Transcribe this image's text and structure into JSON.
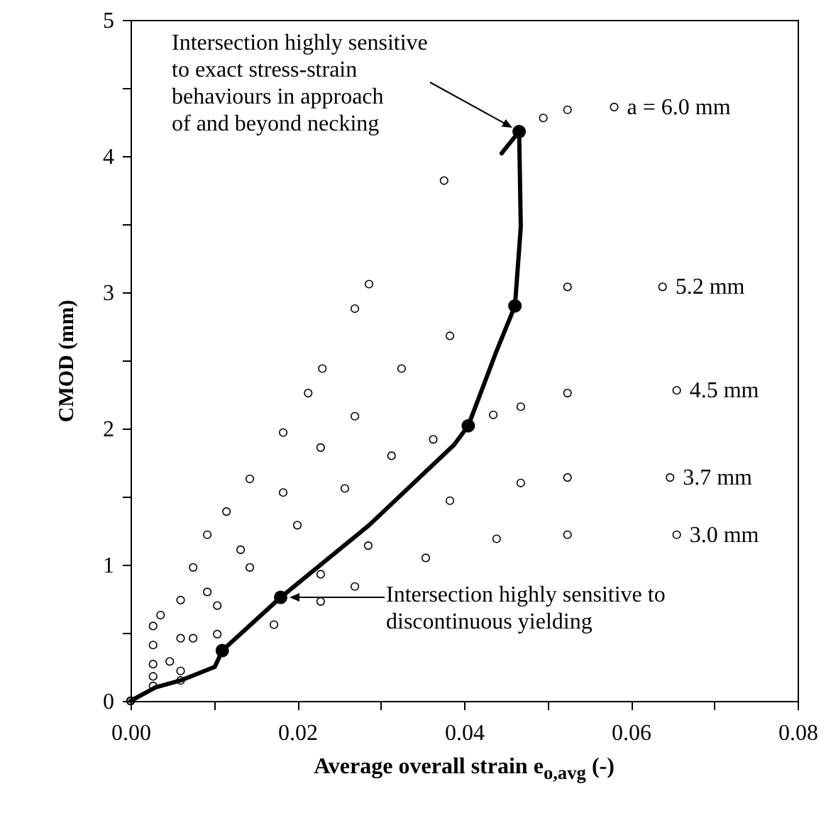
{
  "chart_data": {
    "type": "scatter",
    "xlabel": "Average overall strain e$_{o,avg}$ (-)",
    "ylabel": "CMOD (mm)",
    "xlim": [
      0,
      0.08
    ],
    "ylim": [
      0,
      5
    ],
    "xticks": [
      {
        "value": 0,
        "label": "0.00"
      },
      {
        "value": 0.01,
        "label": null
      },
      {
        "value": 0.02,
        "label": "0.02"
      },
      {
        "value": 0.03,
        "label": null
      },
      {
        "value": 0.04,
        "label": "0.04"
      },
      {
        "value": 0.05,
        "label": null
      },
      {
        "value": 0.06,
        "label": "0.06"
      },
      {
        "value": 0.07,
        "label": null
      },
      {
        "value": 0.08,
        "label": "0.08"
      }
    ],
    "yticks": [
      0,
      {
        "value": 0.5,
        "label": null
      },
      1,
      {
        "value": 1.5,
        "label": null
      },
      2,
      {
        "value": 2.5,
        "label": null
      },
      3,
      {
        "value": 3.5,
        "label": null
      },
      4,
      {
        "value": 4.5,
        "label": null
      },
      5
    ],
    "grid": false,
    "marker": "circle",
    "line_style": "solid",
    "series": [
      {
        "name": "a = 6.0 mm",
        "color": "#000000",
        "x": [
          0,
          0.0027,
          0.0036,
          0.006,
          0.0075,
          0.0092,
          0.0115,
          0.0143,
          0.0183,
          0.0213,
          0.023,
          0.0269,
          0.0286,
          0.0376,
          0.0495,
          0.0524,
          0.058
        ],
        "values": [
          0,
          0.55,
          0.63,
          0.74,
          0.98,
          1.22,
          1.39,
          1.63,
          1.97,
          2.26,
          2.44,
          2.88,
          3.06,
          3.82,
          4.28,
          4.34,
          4.36
        ]
      },
      {
        "name": "5.2 mm",
        "color": "#000000",
        "x": [
          0,
          0.0027,
          0.006,
          0.0092,
          0.0132,
          0.0183,
          0.0228,
          0.0269,
          0.0325,
          0.0383,
          0.0456,
          0.0524,
          0.0638
        ],
        "values": [
          0,
          0.41,
          0.46,
          0.8,
          1.11,
          1.53,
          1.86,
          2.09,
          2.44,
          2.68,
          null,
          3.04,
          3.04
        ]
      },
      {
        "name": "4.5 mm",
        "color": "#000000",
        "x": [
          0,
          0.0027,
          0.0047,
          0.0075,
          0.0104,
          0.0143,
          0.02,
          0.0257,
          0.0313,
          0.0363,
          0.0435,
          0.0468,
          0.0524,
          0.0655
        ],
        "values": [
          0,
          0.27,
          0.29,
          0.46,
          0.7,
          0.98,
          1.29,
          1.56,
          1.8,
          1.92,
          2.1,
          2.16,
          2.26,
          2.28
        ]
      },
      {
        "name": "3.7 mm",
        "color": "#000000",
        "x": [
          0,
          0.0027,
          0.006,
          0.0104,
          0.0172,
          0.0228,
          0.0285,
          0.0383,
          0.0468,
          0.0524,
          0.0647
        ],
        "values": [
          0,
          0.18,
          0.22,
          0.49,
          null,
          0.93,
          1.14,
          1.47,
          1.6,
          1.64,
          1.64
        ]
      },
      {
        "name": "3.0 mm",
        "color": "#000000",
        "x": [
          0,
          0.0027,
          0.006,
          0.0092,
          0.0115,
          0.0172,
          0.0228,
          0.0269,
          0.0354,
          0.0439,
          0.0524,
          0.0655
        ],
        "values": [
          0,
          0.11,
          0.15,
          null,
          null,
          0.56,
          0.73,
          0.84,
          1.05,
          1.19,
          1.22,
          1.22
        ]
      },
      {
        "type": "line",
        "marker": "none",
        "color": "#000000",
        "x": [
          0,
          0.003,
          0.006,
          0.0101,
          0.011,
          0.018,
          0.0286,
          0.0388,
          0.0405,
          0.0439,
          0.0461,
          0.0468,
          0.0466,
          0.0445
        ],
        "values": [
          0,
          0.1,
          0.15,
          0.25,
          0.37,
          0.76,
          1.29,
          1.88,
          2.02,
          2.57,
          2.9,
          3.48,
          4.18,
          4.02
        ]
      },
      {
        "color": "#000000",
        "x": [
          0.011,
          0.018,
          0.0405,
          0.0461,
          0.0466
        ],
        "values": [
          0.37,
          0.76,
          2.02,
          2.9,
          4.18
        ]
      }
    ],
    "annotations": [
      "Intersection highly sensitive\nto exact stress-strain\nbehaviours in approach\nof and beyond necking",
      "Intersection highly sensitive to\ndiscontinuous yielding"
    ]
  }
}
